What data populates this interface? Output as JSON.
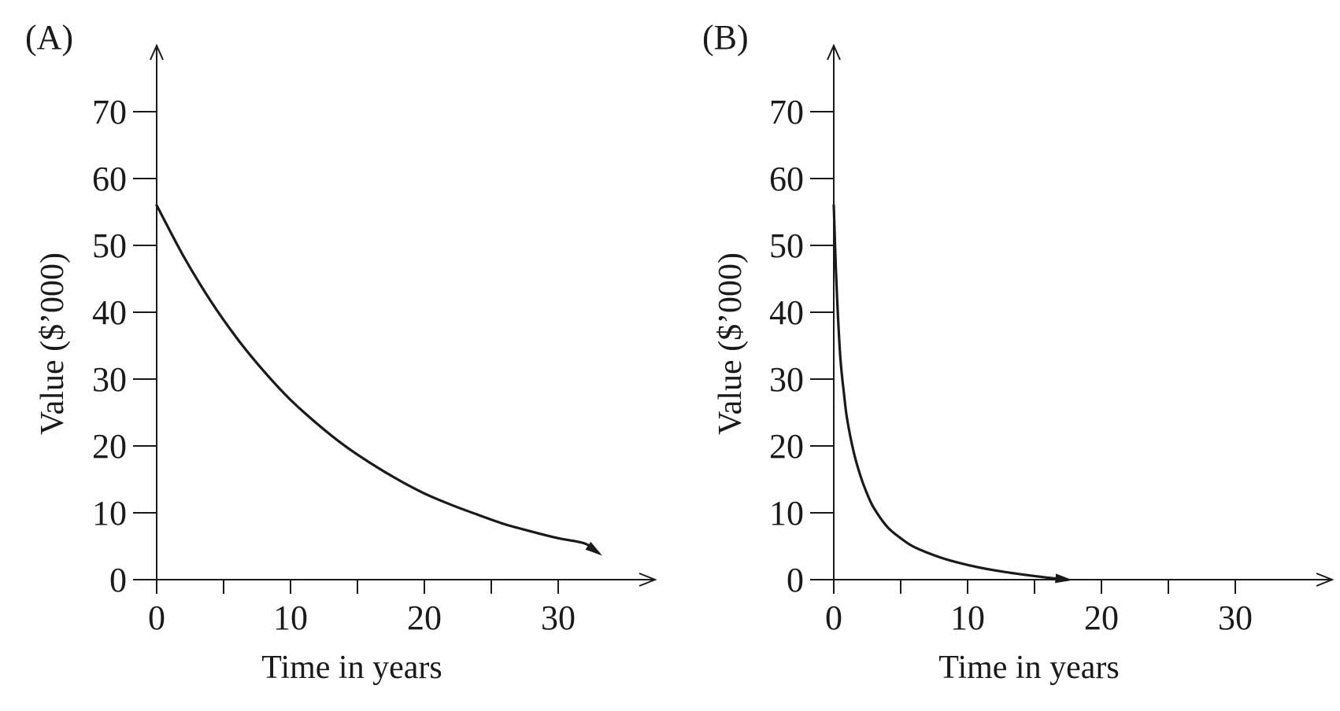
{
  "chart_data": [
    {
      "type": "line",
      "panel_label": "(A)",
      "xlabel": "Time in years",
      "ylabel": "Value ($’000)",
      "x_ticks": [
        0,
        10,
        20,
        30
      ],
      "x_minor_ticks": [
        5,
        15,
        25
      ],
      "y_ticks": [
        0,
        10,
        20,
        30,
        40,
        50,
        60,
        70
      ],
      "xlim": [
        0,
        37
      ],
      "ylim": [
        0,
        80
      ],
      "grid": false,
      "series": [
        {
          "name": "value",
          "x": [
            0,
            2,
            4,
            6,
            8,
            10,
            12,
            14,
            16,
            18,
            20,
            22,
            24,
            26,
            28,
            30,
            32,
            33
          ],
          "y": [
            56,
            48.4,
            41.8,
            36.1,
            31.2,
            26.9,
            23.3,
            20.1,
            17.4,
            15.0,
            12.9,
            11.2,
            9.7,
            8.3,
            7.2,
            6.2,
            5.4,
            4.0
          ],
          "ends_with_arrow": true
        }
      ]
    },
    {
      "type": "line",
      "panel_label": "(B)",
      "xlabel": "Time in years",
      "ylabel": "Value ($’000)",
      "x_ticks": [
        0,
        10,
        20,
        30
      ],
      "x_minor_ticks": [
        5,
        15,
        25
      ],
      "y_ticks": [
        0,
        10,
        20,
        30,
        40,
        50,
        60,
        70
      ],
      "xlim": [
        0,
        37
      ],
      "ylim": [
        0,
        80
      ],
      "grid": false,
      "series": [
        {
          "name": "value",
          "x": [
            0,
            0.15,
            0.3,
            0.5,
            0.75,
            1,
            1.5,
            2,
            2.5,
            3,
            4,
            5,
            6,
            8,
            10,
            12,
            14,
            16,
            17.5
          ],
          "y": [
            56,
            47,
            40,
            33,
            28,
            24,
            19,
            15.5,
            12.8,
            10.7,
            7.9,
            6.2,
            4.9,
            3.3,
            2.2,
            1.4,
            0.8,
            0.3,
            0.0
          ],
          "ends_with_arrow": true
        }
      ]
    }
  ]
}
